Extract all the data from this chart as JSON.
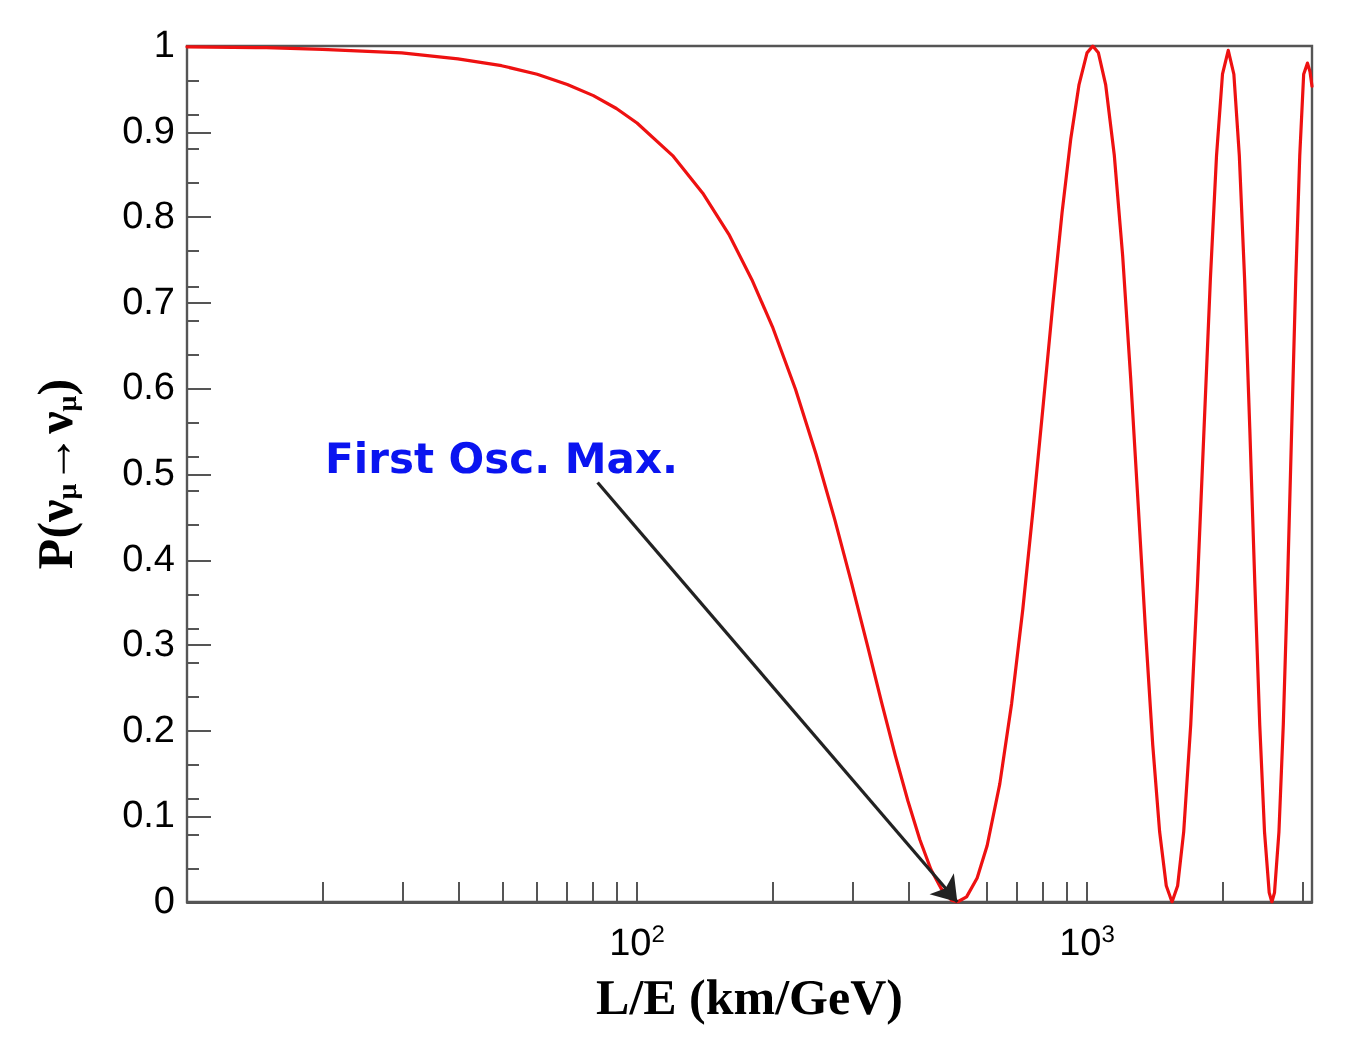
{
  "chart_data": {
    "type": "line",
    "xlabel": "L/E (km/GeV)",
    "ylabel": "P(ν$_{μ}$→ν$_{μ}$)",
    "log": "x",
    "grid": false,
    "marker": "none",
    "line_style": "solid",
    "xlim": [
      10,
      3162
    ],
    "ylim": [
      0,
      1
    ],
    "xticks": [
      {
        "value": 20,
        "label": null
      },
      {
        "value": 30,
        "label": null
      },
      {
        "value": 40,
        "label": null
      },
      {
        "value": 50,
        "label": null
      },
      {
        "value": 60,
        "label": null
      },
      {
        "value": 70,
        "label": null
      },
      {
        "value": 80,
        "label": null
      },
      {
        "value": 90,
        "label": null
      },
      {
        "value": 100,
        "label": "10$^{2}$"
      },
      {
        "value": 200,
        "label": null
      },
      {
        "value": 300,
        "label": null
      },
      {
        "value": 400,
        "label": null
      },
      {
        "value": 500,
        "label": null
      },
      {
        "value": 600,
        "label": null
      },
      {
        "value": 700,
        "label": null
      },
      {
        "value": 800,
        "label": null
      },
      {
        "value": 900,
        "label": null
      },
      {
        "value": 1000,
        "label": "10$^{3}$"
      },
      {
        "value": 2000,
        "label": null
      },
      {
        "value": 3000,
        "label": null
      }
    ],
    "yticks": [
      0,
      0.1,
      0.2,
      0.3,
      0.4,
      0.5,
      0.6,
      0.7,
      0.8,
      0.9,
      1
    ],
    "annotations": [
      {
        "text": "First Osc. Max.",
        "x": 515,
        "y": 0
      }
    ],
    "series": [
      {
        "color": "#ee1111",
        "x": [
          10,
          15,
          20,
          30,
          40,
          50,
          60,
          70,
          80,
          90,
          100,
          120,
          140,
          160,
          180,
          200,
          225,
          250,
          275,
          300,
          325,
          350,
          375,
          400,
          425,
          450,
          475,
          500,
          515,
          540,
          570,
          600,
          640,
          680,
          720,
          760,
          800,
          840,
          880,
          920,
          960,
          1000,
          1030,
          1060,
          1100,
          1150,
          1200,
          1250,
          1300,
          1350,
          1400,
          1450,
          1500,
          1545,
          1590,
          1640,
          1700,
          1760,
          1820,
          1880,
          1940,
          2000,
          2060,
          2120,
          2180,
          2240,
          2300,
          2360,
          2420,
          2480,
          2540,
          2575,
          2610,
          2670,
          2730,
          2790,
          2850,
          2910,
          2970,
          3030,
          3090,
          3130,
          3162
        ],
        "values": [
          0.999,
          0.998,
          0.996,
          0.992,
          0.985,
          0.977,
          0.967,
          0.955,
          0.942,
          0.927,
          0.91,
          0.872,
          0.828,
          0.78,
          0.727,
          0.672,
          0.599,
          0.523,
          0.447,
          0.372,
          0.3,
          0.232,
          0.171,
          0.118,
          0.073,
          0.038,
          0.015,
          0.002,
          0,
          0.006,
          0.028,
          0.066,
          0.138,
          0.232,
          0.342,
          0.462,
          0.583,
          0.7,
          0.805,
          0.891,
          0.955,
          0.992,
          1,
          0.992,
          0.955,
          0.872,
          0.755,
          0.613,
          0.462,
          0.314,
          0.183,
          0.082,
          0.019,
          0,
          0.019,
          0.082,
          0.207,
          0.372,
          0.553,
          0.728,
          0.872,
          0.967,
          0.995,
          0.967,
          0.872,
          0.727,
          0.553,
          0.372,
          0.207,
          0.082,
          0.011,
          0,
          0.011,
          0.082,
          0.207,
          0.372,
          0.553,
          0.728,
          0.872,
          0.967,
          0.98,
          0.97,
          0.953
        ]
      }
    ]
  }
}
